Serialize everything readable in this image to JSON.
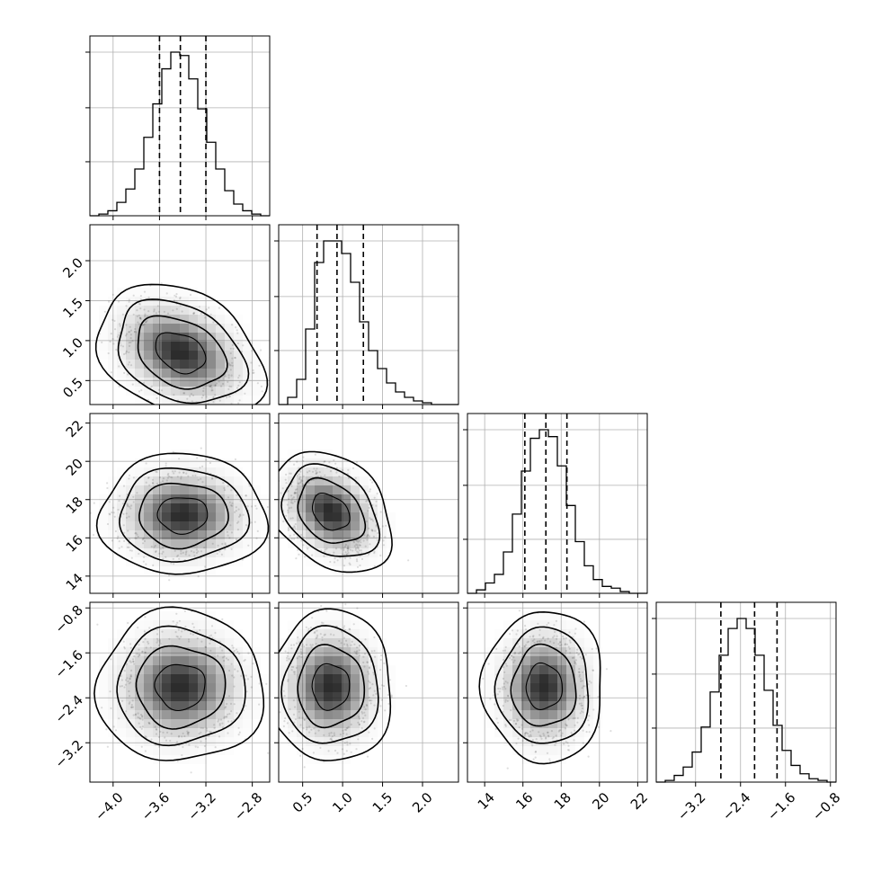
{
  "chart_data": {
    "type": "corner",
    "grid": true,
    "params": [
      {
        "range": [
          -4.2,
          -2.65
        ],
        "ticks": [
          -4.0,
          -3.6,
          -3.2,
          -2.8
        ],
        "tick_labels": [
          "−4.0",
          "−3.6",
          "−3.2",
          "−2.8"
        ],
        "quantiles": [
          -3.6,
          -3.42,
          -3.2
        ],
        "hist_bin_start": -4.2,
        "hist_bin_width": 0.0775,
        "hist_counts": [
          0,
          1,
          3,
          8,
          16,
          28,
          47,
          67,
          88,
          98,
          96,
          82,
          64,
          44,
          28,
          15,
          7,
          3,
          1,
          0
        ]
      },
      {
        "range": [
          0.2,
          2.45
        ],
        "ticks": [
          0.5,
          1.0,
          1.5,
          2.0
        ],
        "tick_labels": [
          "0.5",
          "1.0",
          "1.5",
          "2.0"
        ],
        "quantiles": [
          0.68,
          0.93,
          1.26
        ],
        "hist_bin_start": 0.2,
        "hist_bin_width": 0.1125,
        "hist_counts": [
          0,
          4,
          14,
          42,
          79,
          91,
          91,
          84,
          68,
          46,
          30,
          20,
          12,
          7,
          4,
          2,
          1,
          0,
          0,
          0
        ]
      },
      {
        "range": [
          13.1,
          22.5
        ],
        "ticks": [
          14,
          16,
          18,
          20,
          22
        ],
        "tick_labels": [
          "14",
          "16",
          "18",
          "20",
          "22"
        ],
        "quantiles": [
          16.1,
          17.2,
          18.3
        ],
        "hist_bin_start": 13.1,
        "hist_bin_width": 0.47,
        "hist_counts": [
          0,
          2,
          6,
          11,
          24,
          46,
          71,
          90,
          95,
          91,
          74,
          51,
          30,
          16,
          8,
          4,
          3,
          1,
          0,
          0
        ]
      },
      {
        "range": [
          -3.9,
          -0.7
        ],
        "ticks": [
          -3.2,
          -2.4,
          -1.6,
          -0.8
        ],
        "tick_labels": [
          "−3.2",
          "−2.4",
          "−1.6",
          "−0.8"
        ],
        "quantiles": [
          -2.75,
          -2.15,
          -1.75
        ],
        "hist_bin_start": -3.9,
        "hist_bin_width": 0.16,
        "hist_counts": [
          0,
          1,
          4,
          9,
          18,
          33,
          54,
          76,
          92,
          98,
          92,
          76,
          55,
          34,
          19,
          10,
          5,
          2,
          1,
          0
        ]
      }
    ],
    "pairs": [
      {
        "row": 1,
        "col": 0,
        "center": [
          -3.42,
          0.85
        ],
        "sd": [
          0.24,
          0.28
        ],
        "corr": -0.3
      },
      {
        "row": 2,
        "col": 0,
        "center": [
          -3.4,
          17.2
        ],
        "sd": [
          0.24,
          1.05
        ],
        "corr": 0.0
      },
      {
        "row": 2,
        "col": 1,
        "center": [
          0.85,
          17.35
        ],
        "sd": [
          0.26,
          1.05
        ],
        "corr": -0.3
      },
      {
        "row": 3,
        "col": 0,
        "center": [
          -3.42,
          -2.2
        ],
        "sd": [
          0.24,
          0.45
        ],
        "corr": 0.0
      },
      {
        "row": 3,
        "col": 1,
        "center": [
          0.85,
          -2.2
        ],
        "sd": [
          0.26,
          0.45
        ],
        "corr": 0.0
      },
      {
        "row": 3,
        "col": 2,
        "center": [
          17.1,
          -2.2
        ],
        "sd": [
          1.05,
          0.45
        ],
        "corr": 0.0
      }
    ],
    "contour_levels": [
      0.9,
      1.6,
      2.3,
      3.0
    ],
    "colors": {
      "line": "#000000",
      "grid": "#b0b0b0",
      "points": "#000000",
      "density_dark": "#1a1a1a"
    }
  }
}
